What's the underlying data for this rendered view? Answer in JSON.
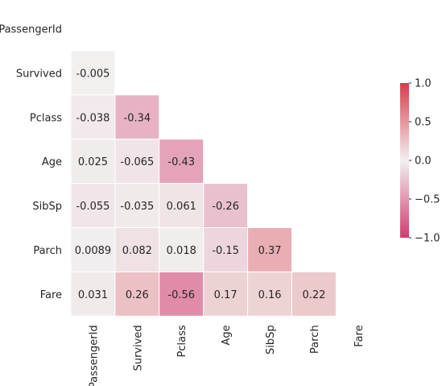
{
  "chart_data": {
    "type": "heatmap",
    "variant": "lower-triangle correlation matrix",
    "labels": [
      "PassengerId",
      "Survived",
      "Pclass",
      "Age",
      "SibSp",
      "Parch",
      "Fare"
    ],
    "values": [
      [
        null,
        null,
        null,
        null,
        null,
        null,
        null
      ],
      [
        "-0.005",
        null,
        null,
        null,
        null,
        null,
        null
      ],
      [
        "-0.038",
        "-0.34",
        null,
        null,
        null,
        null,
        null
      ],
      [
        "0.025",
        "-0.065",
        "-0.43",
        null,
        null,
        null,
        null
      ],
      [
        "-0.055",
        "-0.035",
        "0.061",
        "-0.26",
        null,
        null,
        null
      ],
      [
        "0.0089",
        "0.082",
        "0.018",
        "-0.15",
        "0.37",
        null,
        null
      ],
      [
        "0.031",
        "0.26",
        "-0.56",
        "0.17",
        "0.16",
        "0.22",
        null
      ]
    ],
    "vmin": -1,
    "vmax": 1,
    "colorbar": {
      "ticks": [
        1.0,
        0.5,
        0.0,
        -0.5,
        -1.0
      ],
      "tick_labels": [
        "1.0",
        "0.5",
        "0.0",
        "−0.5",
        "−1.0"
      ],
      "colors": {
        "negative_end": "#d13c6e",
        "center": "#f2f0f0",
        "positive_end": "#d63d4a"
      }
    },
    "grid": "white cell borders",
    "legend": "colorbar right",
    "title": "",
    "xlabel": "",
    "ylabel": ""
  }
}
